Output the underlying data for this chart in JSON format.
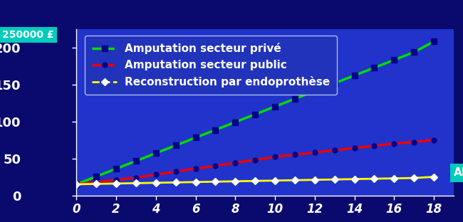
{
  "outer_bg_color": "#0a0a6e",
  "left_panel_color": "#05055a",
  "plot_bg_color": "#2233cc",
  "title_y_label": "250000 £",
  "xlabel": "ANS",
  "yticks": [
    0,
    50,
    100,
    150,
    200
  ],
  "xticks": [
    0,
    2,
    4,
    6,
    8,
    10,
    12,
    14,
    16,
    18
  ],
  "ylim": [
    0,
    225
  ],
  "xlim": [
    0,
    19
  ],
  "series": [
    {
      "label": "Amputation secteur privé",
      "color": "#00dd00",
      "marker_color": "#00008b",
      "marker": "s",
      "linestyle": "-",
      "linewidth": 2.5,
      "markersize": 6,
      "x": [
        0,
        1,
        2,
        3,
        4,
        5,
        6,
        7,
        8,
        9,
        10,
        11,
        12,
        13,
        14,
        15,
        16,
        17,
        18
      ],
      "y": [
        15,
        25.5,
        36,
        46.5,
        57,
        67.5,
        78,
        88.5,
        99,
        109.5,
        120,
        130.5,
        141,
        151.5,
        162,
        172.5,
        183,
        193.5,
        208
      ]
    },
    {
      "label": "Amputation secteur public",
      "color": "#ee0000",
      "marker_color": "#00008b",
      "marker": "o",
      "linestyle": "-",
      "linewidth": 2.5,
      "markersize": 5,
      "x": [
        0,
        1,
        2,
        3,
        4,
        5,
        6,
        7,
        8,
        9,
        10,
        11,
        12,
        13,
        14,
        15,
        16,
        17,
        18
      ],
      "y": [
        15,
        18,
        21,
        24,
        28,
        32,
        36,
        40,
        44,
        48,
        52,
        55,
        58,
        61,
        64,
        67,
        70,
        72,
        75
      ]
    },
    {
      "label": "Reconstruction par endoprothèse",
      "color": "#ffff00",
      "marker_color": "#ffffff",
      "marker": "D",
      "linestyle": "-",
      "linewidth": 2.0,
      "markersize": 5,
      "x": [
        0,
        1,
        2,
        3,
        4,
        5,
        6,
        7,
        8,
        9,
        10,
        11,
        12,
        13,
        14,
        15,
        16,
        17,
        18
      ],
      "y": [
        15,
        15.5,
        16,
        16.5,
        17,
        17.5,
        18,
        18.5,
        19,
        19.5,
        20,
        20.5,
        21,
        21.5,
        22,
        22.5,
        23,
        23.5,
        25
      ]
    }
  ],
  "legend_bg": "#2233bb",
  "legend_text_color": "#ffffff",
  "legend_border_color": "#aabbee",
  "text_color": "#ffffff",
  "tick_color": "#ffffff",
  "axis_color": "#ffffff",
  "ans_bg_color": "#00ccbb",
  "y_title_bg_color": "#00ccbb",
  "font_size_ticks": 12,
  "font_size_legend": 10,
  "tick_label_style": "italic"
}
